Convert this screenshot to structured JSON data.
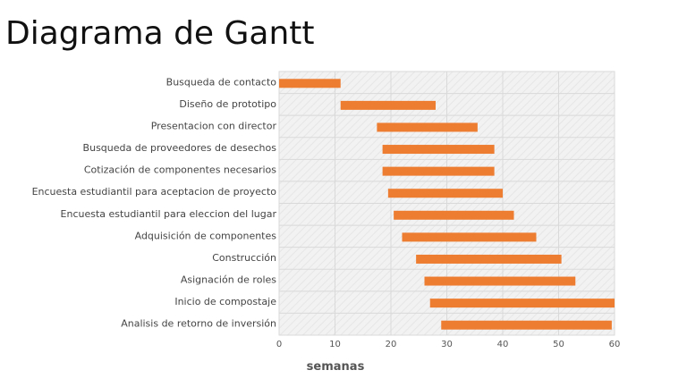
{
  "title": "Diagrama de Gantt",
  "chart_data": {
    "type": "bar",
    "orientation": "horizontal",
    "stacked": true,
    "title": "",
    "xlabel": "semanas",
    "ylabel": "",
    "xlim": [
      0,
      60
    ],
    "xticks": [
      0,
      10,
      20,
      30,
      40,
      50,
      60
    ],
    "grid": true,
    "bar_color": "#ED7D31",
    "plot_background": "#F2F2F2",
    "categories": [
      "Busqueda de contacto",
      "Diseño de prototipo",
      "Presentacion con director",
      "Busqueda de proveedores de desechos",
      "Cotización de componentes necesarios",
      "Encuesta estudiantil para aceptacion de proyecto",
      "Encuesta estudiantil para eleccion del lugar",
      "Adquisición de componentes",
      "Construcción",
      "Asignación de roles",
      "Inicio de compostaje",
      "Analisis de retorno de inversión"
    ],
    "series": [
      {
        "role": "start",
        "values": [
          0,
          11,
          17.5,
          18.5,
          18.5,
          19.5,
          20.5,
          22,
          24.5,
          26,
          27,
          29
        ]
      },
      {
        "role": "duration",
        "values": [
          11,
          17,
          18,
          20,
          20,
          20.5,
          21.5,
          24,
          26,
          27,
          33,
          30.5
        ]
      }
    ]
  }
}
